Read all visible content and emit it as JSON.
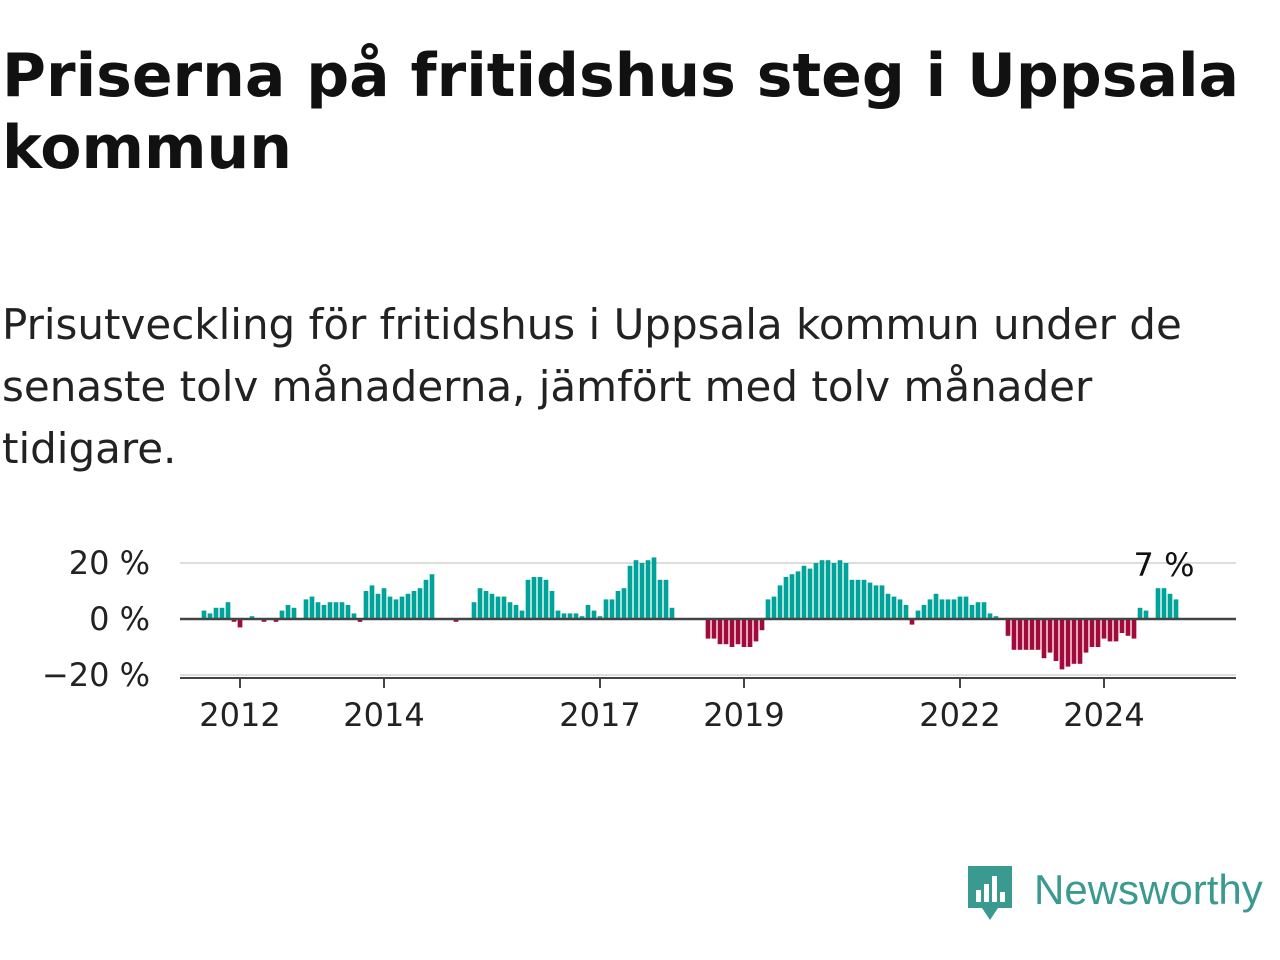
{
  "title": "Priserna på fritidshus steg i Uppsala kommun",
  "subtitle": "Prisutveckling för fritidshus i Uppsala kommun under de senaste tolv månaderna, jämfört med tolv månader tidigare.",
  "logo_text": "Newsworthy",
  "colors": {
    "positive": "#00a39a",
    "negative": "#a10a3a",
    "grid": "#dddddd",
    "axis": "#444444",
    "text": "#222222",
    "logo": "#3a9a8f"
  },
  "chart_data": {
    "type": "bar",
    "title": "",
    "xlabel": "",
    "ylabel": "",
    "ylim": [
      -20,
      20
    ],
    "xlim": [
      "2011-03",
      "2025-11"
    ],
    "grid": true,
    "legend": "none",
    "y_ticks": [
      20,
      0,
      -20
    ],
    "y_tick_labels": [
      "20 %",
      "0 %",
      "−20 %"
    ],
    "x_ticks": [
      "2012",
      "2014",
      "2017",
      "2019",
      "2022",
      "2024"
    ],
    "annotation": {
      "text": "7 %",
      "at": "2024-11"
    },
    "start_month": "2011-07",
    "values": [
      3,
      2,
      4,
      4,
      6,
      -1,
      -3,
      0,
      1,
      0,
      -1,
      0,
      -1,
      3,
      5,
      4,
      0,
      7,
      8,
      6,
      5,
      6,
      6,
      6,
      5,
      2,
      -1,
      10,
      12,
      9,
      11,
      8,
      7,
      8,
      9,
      10,
      11,
      14,
      16,
      0,
      0,
      0,
      -1,
      0,
      0,
      6,
      11,
      10,
      9,
      8,
      8,
      6,
      5,
      3,
      14,
      15,
      15,
      14,
      10,
      3,
      2,
      2,
      2,
      1,
      5,
      3,
      1,
      7,
      7,
      10,
      11,
      19,
      21,
      20,
      21,
      22,
      14,
      14,
      4,
      0,
      0,
      0,
      0,
      0,
      -7,
      -7,
      -9,
      -9,
      -10,
      -9,
      -10,
      -10,
      -8,
      -4,
      7,
      8,
      12,
      15,
      16,
      17,
      19,
      18,
      20,
      21,
      21,
      20,
      21,
      20,
      14,
      14,
      14,
      13,
      12,
      12,
      9,
      8,
      7,
      5,
      -2,
      3,
      5,
      7,
      9,
      7,
      7,
      7,
      8,
      8,
      5,
      6,
      6,
      2,
      1,
      0,
      -6,
      -11,
      -11,
      -11,
      -11,
      -11,
      -14,
      -12,
      -15,
      -18,
      -17,
      -16,
      -16,
      -12,
      -10,
      -10,
      -7,
      -8,
      -8,
      -5,
      -6,
      -7,
      4,
      3,
      0,
      11,
      11,
      9,
      7
    ]
  }
}
